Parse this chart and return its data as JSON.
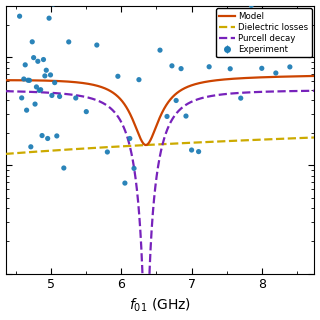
{
  "xlabel": "$f_{01}$ (GHz)",
  "legend_labels": [
    "Experiment",
    "Model",
    "Dielectric losses",
    "Purcell decay"
  ],
  "colors": {
    "experiment": "#1f7db5",
    "model": "#cc4400",
    "dielectric": "#ccaa00",
    "purcell": "#7722bb"
  },
  "f_res": 6.35,
  "f_min": 4.3,
  "f_max": 8.8,
  "xlim": [
    4.35,
    8.75
  ],
  "ylim": [
    1e-05,
    0.003
  ],
  "dielectric_A": 0.00015,
  "dielectric_exp": 0.5,
  "purcell_A": 0.0005,
  "purcell_gamma": 0.35,
  "exp_points_f": [
    4.55,
    4.58,
    4.61,
    4.63,
    4.65,
    4.67,
    4.69,
    4.71,
    4.73,
    4.75,
    4.77,
    4.79,
    4.81,
    4.83,
    4.85,
    4.87,
    4.89,
    4.91,
    4.93,
    4.95,
    4.97,
    4.99,
    5.01,
    5.03,
    5.05,
    5.08,
    5.12,
    5.18,
    5.25,
    5.35,
    5.5,
    5.65,
    5.8,
    5.95,
    6.05,
    6.12,
    6.18,
    6.25,
    6.55,
    6.65,
    6.72,
    6.78,
    6.85,
    6.92,
    7.0,
    7.1,
    7.25,
    7.4,
    7.55,
    7.7,
    7.85,
    8.0,
    8.2,
    8.4
  ],
  "exp_noise_seed": 7,
  "background_color": "#ffffff"
}
